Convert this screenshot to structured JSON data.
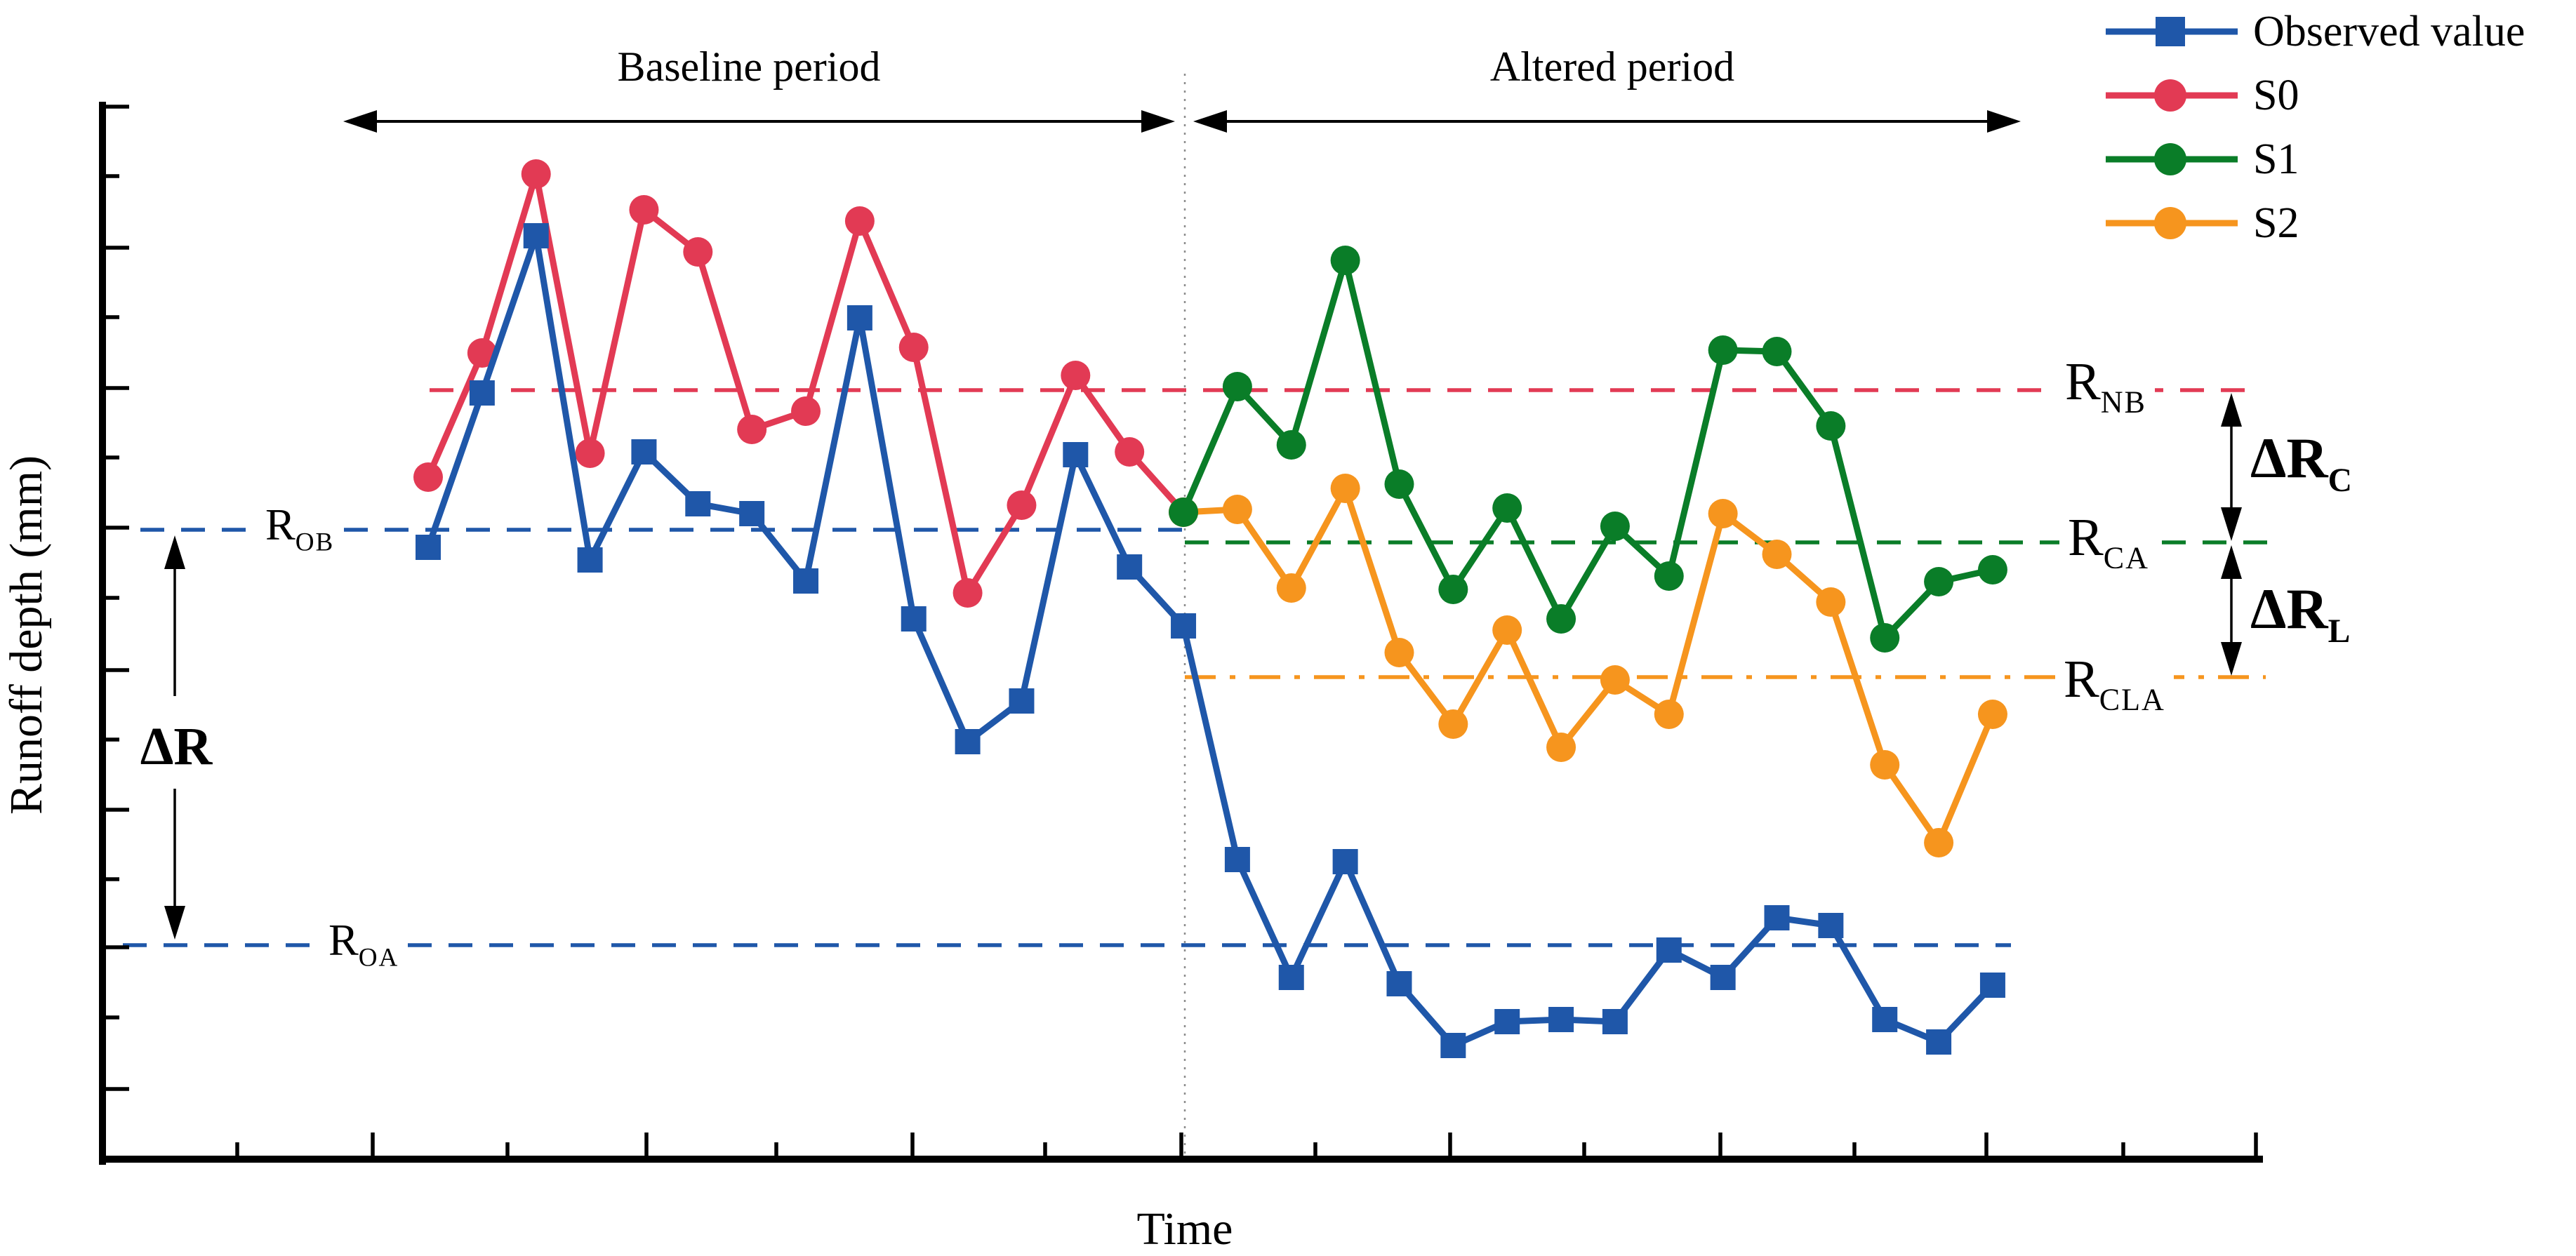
{
  "chart_data": {
    "type": "line",
    "title": "",
    "xlabel": "Time",
    "ylabel": "Runoff depth (mm)",
    "x_axis_note": "no numeric tick labels; 30 equally spaced time steps; boundary between periods after step 15",
    "y_axis_note": "no numeric tick labels; relative units, minor tick = 1 unit",
    "ylim": [
      0,
      15.5
    ],
    "grid": "off",
    "legend_position": "top-right, outside plot",
    "periods": {
      "baseline": {
        "label": "Baseline period",
        "index_range": [
          0,
          14
        ]
      },
      "altered": {
        "label": "Altered period",
        "index_range": [
          14,
          29
        ]
      }
    },
    "series": [
      {
        "name": "Observed value",
        "color": "#1F57A9",
        "marker": "square",
        "start_index": 0,
        "values": [
          8.72,
          10.92,
          13.16,
          8.54,
          10.08,
          9.34,
          9.2,
          8.24,
          11.99,
          7.7,
          5.95,
          6.53,
          10.04,
          8.44,
          7.6,
          4.27,
          2.59,
          4.24,
          2.5,
          1.62,
          1.96,
          1.99,
          1.96,
          2.98,
          2.59,
          3.44,
          3.33,
          1.99,
          1.67,
          2.48
        ]
      },
      {
        "name": "S0",
        "color": "#E23A54",
        "marker": "circle",
        "start_index": 0,
        "values": [
          9.72,
          11.49,
          14.04,
          10.06,
          13.53,
          12.93,
          10.4,
          10.66,
          13.37,
          11.57,
          8.07,
          9.32,
          11.17,
          10.08,
          9.22
        ]
      },
      {
        "name": "S1",
        "color": "#0A7D28",
        "marker": "circle",
        "start_index": 14,
        "values": [
          9.22,
          11.01,
          10.18,
          12.81,
          9.62,
          8.12,
          9.28,
          7.7,
          9.02,
          8.31,
          11.53,
          11.51,
          10.45,
          7.43,
          8.23,
          8.4
        ]
      },
      {
        "name": "S2",
        "color": "#F6951E",
        "marker": "circle",
        "start_index": 14,
        "values": [
          9.22,
          9.26,
          8.14,
          9.56,
          7.22,
          6.2,
          7.54,
          5.87,
          6.83,
          6.34,
          9.2,
          8.62,
          7.94,
          5.62,
          4.51,
          6.34
        ]
      }
    ],
    "reference_lines": [
      {
        "id": "r_nb",
        "base": "R",
        "sub": "NB",
        "value": 10.96,
        "color": "#E23A54",
        "style": "dashed"
      },
      {
        "id": "r_ob",
        "base": "R",
        "sub": "OB",
        "value": 8.97,
        "color": "#1F57A9",
        "style": "dashed"
      },
      {
        "id": "r_ca",
        "base": "R",
        "sub": "CA",
        "value": 8.79,
        "color": "#0A7D28",
        "style": "dashed"
      },
      {
        "id": "r_cla",
        "base": "R",
        "sub": "CLA",
        "value": 6.87,
        "color": "#F6951E",
        "style": "dashdot"
      },
      {
        "id": "r_oa",
        "base": "R",
        "sub": "OA",
        "value": 3.05,
        "color": "#1F57A9",
        "style": "dashed"
      }
    ],
    "annotations": [
      {
        "base": "ΔR",
        "sub": "",
        "between": [
          "r_ob",
          "r_oa"
        ],
        "side": "left"
      },
      {
        "base": "ΔR",
        "sub": "C",
        "between": [
          "r_nb",
          "r_ca"
        ],
        "side": "right"
      },
      {
        "base": "ΔR",
        "sub": "L",
        "between": [
          "r_ca",
          "r_cla"
        ],
        "side": "right"
      }
    ]
  }
}
